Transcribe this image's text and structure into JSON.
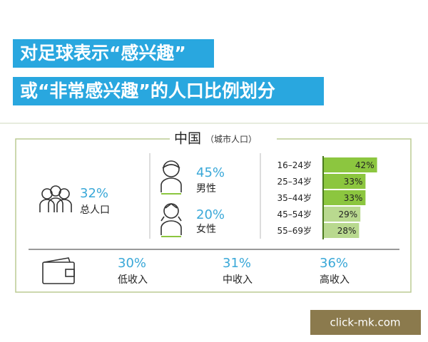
{
  "title_lines": [
    "对足球表示“感兴趣”",
    "或“非常感兴趣”的人口比例划分"
  ],
  "panel": {
    "title": "中国",
    "subtitle": "（城市人口）"
  },
  "total": {
    "value": "32%",
    "label": "总人口"
  },
  "gender": [
    {
      "value": "45%",
      "label": "男性"
    },
    {
      "value": "20%",
      "label": "女性"
    }
  ],
  "age_bars": {
    "categories": [
      "16–24岁",
      "25–34岁",
      "35–44岁",
      "45–54岁",
      "55–69岁"
    ],
    "values": [
      42,
      33,
      33,
      29,
      28
    ],
    "value_labels": [
      "42%",
      "33%",
      "33%",
      "29%",
      "28%"
    ],
    "colors": [
      "#8cc63f",
      "#8cc63f",
      "#8cc63f",
      "#b9d98f",
      "#b9d98f"
    ]
  },
  "income": [
    {
      "value": "30%",
      "label": "低收入"
    },
    {
      "value": "31%",
      "label": "中收入"
    },
    {
      "value": "36%",
      "label": "高收入"
    }
  ],
  "watermark": "click-mk.com"
}
